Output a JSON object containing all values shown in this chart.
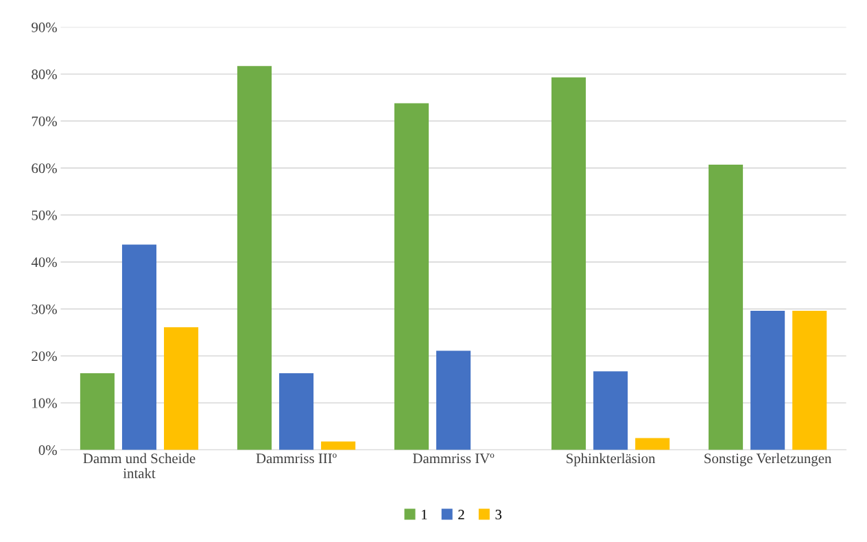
{
  "chart_data": {
    "type": "bar",
    "categories": [
      "Damm und Scheide\nintakt",
      "Dammriss IIIº",
      "Dammriss IVº",
      "Sphinkterläsion",
      "Sonstige Verletzungen"
    ],
    "series": [
      {
        "name": "1",
        "color": "#70ad47",
        "values": [
          16.3,
          81.7,
          73.8,
          79.3,
          60.7
        ]
      },
      {
        "name": "2",
        "color": "#4472c4",
        "values": [
          43.7,
          16.3,
          21.1,
          16.7,
          29.6
        ]
      },
      {
        "name": "3",
        "color": "#ffc000",
        "values": [
          26.1,
          1.8,
          null,
          2.5,
          29.6
        ]
      }
    ],
    "ylim": [
      0,
      90
    ],
    "yticks": [
      {
        "value": 0,
        "label": "0%"
      },
      {
        "value": 10,
        "label": "10%"
      },
      {
        "value": 20,
        "label": "20%"
      },
      {
        "value": 30,
        "label": "30%"
      },
      {
        "value": 40,
        "label": "40%"
      },
      {
        "value": 50,
        "label": "50%"
      },
      {
        "value": 60,
        "label": "60%"
      },
      {
        "value": 70,
        "label": "70%"
      },
      {
        "value": 80,
        "label": "80%"
      },
      {
        "value": 90,
        "label": "90%"
      }
    ],
    "grid": "y",
    "legend": "bottom"
  }
}
